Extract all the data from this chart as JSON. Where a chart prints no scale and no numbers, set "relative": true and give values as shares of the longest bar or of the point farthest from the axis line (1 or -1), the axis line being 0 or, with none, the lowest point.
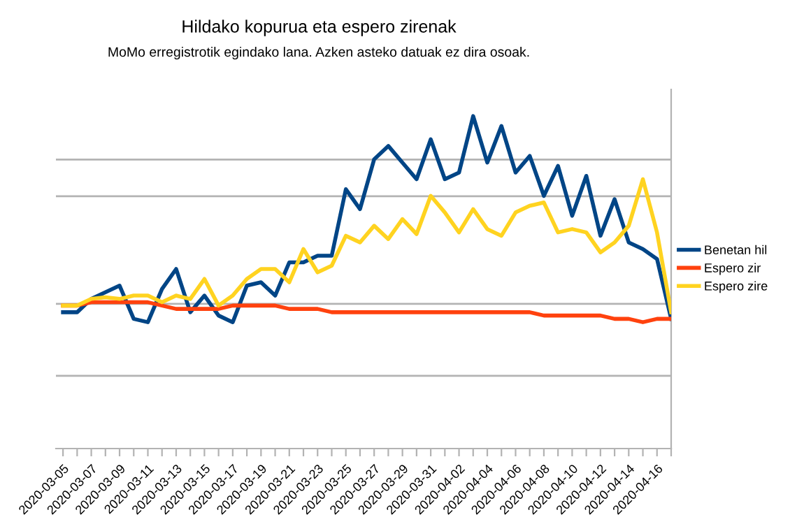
{
  "chart_data": {
    "type": "line",
    "title": "Hildako kopurua eta espero zirenak",
    "subtitle": "MoMo erregistrotik egindako lana. Azken asteko datuak ez dira osoak.",
    "categories": [
      "2020-03-05",
      null,
      "2020-03-07",
      null,
      "2020-03-09",
      null,
      "2020-03-11",
      null,
      "2020-03-13",
      null,
      "2020-03-15",
      null,
      "2020-03-17",
      null,
      "2020-03-19",
      null,
      "2020-03-21",
      null,
      "2020-03-23",
      null,
      "2020-03-25",
      null,
      "2020-03-27",
      null,
      "2020-03-29",
      null,
      "2020-03-31",
      null,
      "2020-04-02",
      null,
      "2020-04-04",
      null,
      "2020-04-06",
      null,
      "2020-04-08",
      null,
      "2020-04-10",
      null,
      "2020-04-12",
      null,
      "2020-04-14",
      null,
      "2020-04-16",
      null
    ],
    "relative": true,
    "series": [
      {
        "name": "Benetan hil",
        "color": "#004586",
        "values": [
          0.41,
          0.41,
          0.45,
          0.47,
          0.49,
          0.39,
          0.38,
          0.48,
          0.54,
          0.41,
          0.46,
          0.4,
          0.38,
          0.49,
          0.5,
          0.46,
          0.56,
          0.56,
          0.58,
          0.58,
          0.78,
          0.72,
          0.87,
          0.91,
          0.86,
          0.81,
          0.93,
          0.81,
          0.83,
          1.0,
          0.86,
          0.97,
          0.83,
          0.88,
          0.76,
          0.85,
          0.7,
          0.82,
          0.64,
          0.75,
          0.62,
          0.6,
          0.57,
          0.39
        ]
      },
      {
        "name": "Espero zir",
        "color": "#ff420e",
        "values": [
          0.43,
          0.43,
          0.44,
          0.44,
          0.44,
          0.44,
          0.44,
          0.43,
          0.42,
          0.42,
          0.42,
          0.42,
          0.43,
          0.43,
          0.43,
          0.43,
          0.42,
          0.42,
          0.42,
          0.41,
          0.41,
          0.41,
          0.41,
          0.41,
          0.41,
          0.41,
          0.41,
          0.41,
          0.41,
          0.41,
          0.41,
          0.41,
          0.41,
          0.41,
          0.4,
          0.4,
          0.4,
          0.4,
          0.4,
          0.39,
          0.39,
          0.38,
          0.39,
          0.39
        ]
      },
      {
        "name": "Espero zire",
        "color": "#ffd320",
        "values": [
          0.43,
          0.43,
          0.45,
          0.455,
          0.45,
          0.46,
          0.46,
          0.44,
          0.46,
          0.45,
          0.51,
          0.43,
          0.46,
          0.51,
          0.54,
          0.54,
          0.5,
          0.6,
          0.53,
          0.55,
          0.64,
          0.62,
          0.67,
          0.63,
          0.69,
          0.645,
          0.76,
          0.71,
          0.65,
          0.72,
          0.66,
          0.64,
          0.71,
          0.73,
          0.74,
          0.65,
          0.66,
          0.65,
          0.59,
          0.62,
          0.67,
          0.81,
          0.65,
          0.41
        ]
      }
    ],
    "ref_lines": [
      {
        "axis": "y",
        "value": 0.219,
        "color": "#b3b3b3"
      },
      {
        "axis": "y",
        "value": 0.435,
        "color": "#b3b3b3"
      },
      {
        "axis": "y",
        "value": 0.759,
        "color": "#b3b3b3"
      },
      {
        "axis": "y",
        "value": 0.869,
        "color": "#b3b3b3"
      }
    ],
    "legend": "right",
    "marker": "none",
    "line_style": "solid"
  }
}
